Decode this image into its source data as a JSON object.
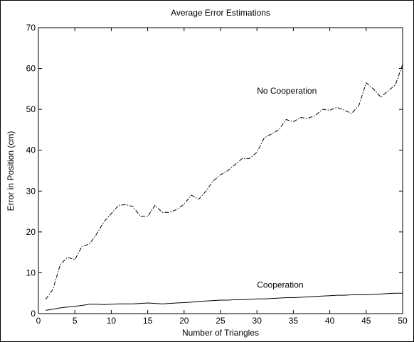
{
  "chart_data": {
    "type": "line",
    "title": "Average Error Estimations",
    "xlabel": "Number of Triangles",
    "ylabel": "Error in Position (cm)",
    "xlim": [
      0,
      50
    ],
    "ylim": [
      0,
      70
    ],
    "xticks": [
      0,
      5,
      10,
      15,
      20,
      25,
      30,
      35,
      40,
      45,
      50
    ],
    "yticks": [
      0,
      10,
      20,
      30,
      40,
      50,
      60,
      70
    ],
    "grid": false,
    "legend": "none",
    "annotations": [
      {
        "text": "No Cooperation",
        "x": 30,
        "y": 54.5
      },
      {
        "text": "Cooperation",
        "x": 30,
        "y": 7
      }
    ],
    "series": [
      {
        "line_style": "dash-dot",
        "color": "#000000",
        "x": [
          1,
          2,
          3,
          4,
          5,
          6,
          7,
          8,
          9,
          10,
          11,
          12,
          13,
          14,
          15,
          16,
          17,
          18,
          19,
          20,
          21,
          22,
          23,
          24,
          25,
          26,
          27,
          28,
          29,
          30,
          31,
          32,
          33,
          34,
          35,
          36,
          37,
          38,
          39,
          40,
          41,
          42,
          43,
          44,
          45,
          46,
          47,
          48,
          49,
          50
        ],
        "values": [
          3.5,
          6,
          12,
          13.8,
          13.2,
          16.5,
          17,
          19.5,
          22.5,
          24.5,
          26.5,
          26.7,
          26.2,
          23.8,
          23.8,
          26.5,
          24.8,
          24.8,
          25.5,
          26.8,
          29,
          28,
          30,
          32.5,
          34,
          35,
          36.5,
          38,
          38,
          39.5,
          43,
          44,
          45,
          47.5,
          47,
          48,
          47.8,
          48.5,
          50,
          49.8,
          50.5,
          49.8,
          49,
          51,
          56.5,
          55,
          53,
          54.5,
          56,
          61
        ]
      },
      {
        "line_style": "solid",
        "color": "#000000",
        "x": [
          1,
          2,
          3,
          4,
          5,
          6,
          7,
          8,
          9,
          10,
          11,
          12,
          13,
          14,
          15,
          16,
          17,
          18,
          19,
          20,
          21,
          22,
          23,
          24,
          25,
          26,
          27,
          28,
          29,
          30,
          31,
          32,
          33,
          34,
          35,
          36,
          37,
          38,
          39,
          40,
          41,
          42,
          43,
          44,
          45,
          46,
          47,
          48,
          49,
          50
        ],
        "values": [
          0.8,
          1.1,
          1.4,
          1.6,
          1.8,
          2.0,
          2.3,
          2.3,
          2.2,
          2.3,
          2.4,
          2.4,
          2.4,
          2.5,
          2.6,
          2.5,
          2.4,
          2.5,
          2.6,
          2.7,
          2.8,
          3.0,
          3.1,
          3.2,
          3.3,
          3.3,
          3.4,
          3.4,
          3.5,
          3.6,
          3.6,
          3.7,
          3.8,
          3.9,
          3.9,
          4.0,
          4.1,
          4.2,
          4.3,
          4.4,
          4.5,
          4.5,
          4.6,
          4.6,
          4.6,
          4.7,
          4.8,
          4.9,
          5.0,
          5.0
        ]
      }
    ]
  }
}
